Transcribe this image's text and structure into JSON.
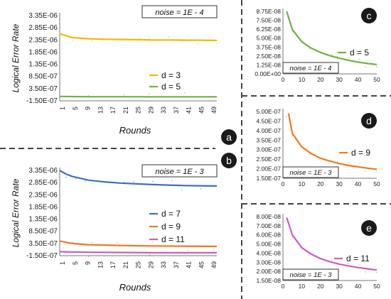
{
  "labels": {
    "a": "a",
    "b": "b",
    "c": "c",
    "d": "d",
    "e": "e"
  },
  "colors": {
    "d3": "#f5b800",
    "d5": "#6db33f",
    "d7": "#3f6fbf",
    "d9": "#f07a1e",
    "d11": "#c85fc0",
    "divider": "#444444",
    "badge_bg": "#1a1a1a",
    "badge_text": "#ffffff"
  },
  "chart_data": [
    {
      "id": "a",
      "type": "line",
      "ylabel": "Logical Error Rate",
      "xlabel": "Rounds",
      "noise_label": "noise = 1E - 4",
      "yticks": [
        "3.35E-06",
        "2.85E-06",
        "2.35E-06",
        "1.85E-06",
        "1.35E-06",
        "8.50E-07",
        "3.50E-07",
        "-1.50E-07"
      ],
      "ylim": [
        -1.5e-07,
        3.35e-06
      ],
      "xticks": [
        "1",
        "5",
        "9",
        "13",
        "17",
        "21",
        "25",
        "29",
        "33",
        "37",
        "41",
        "45",
        "49"
      ],
      "xlim": [
        1,
        50
      ],
      "legend_location": "right",
      "series": [
        {
          "name": "d = 3",
          "color_key": "d3",
          "x": [
            1,
            5,
            10,
            15,
            20,
            25,
            30,
            35,
            40,
            45,
            50
          ],
          "values": [
            2.6e-06,
            2.45e-06,
            2.4e-06,
            2.38e-06,
            2.37e-06,
            2.36e-06,
            2.35e-06,
            2.35e-06,
            2.34e-06,
            2.34e-06,
            2.33e-06
          ]
        },
        {
          "name": "d = 5",
          "color_key": "d5",
          "x": [
            1,
            10,
            20,
            30,
            40,
            50
          ],
          "values": [
            3e-08,
            2e-08,
            2e-08,
            1.5e-08,
            1.5e-08,
            1.5e-08
          ]
        }
      ]
    },
    {
      "id": "b",
      "type": "line",
      "ylabel": "Logical Error Rate",
      "xlabel": "Rounds",
      "noise_label": "noise = 1E - 3",
      "yticks": [
        "3.35E-06",
        "2.85E-06",
        "2.35E-06",
        "1.85E-06",
        "1.35E-06",
        "8.50E-07",
        "3.50E-07",
        "-1.50E-07"
      ],
      "ylim": [
        -1.5e-07,
        3.35e-06
      ],
      "xticks": [
        "1",
        "5",
        "9",
        "13",
        "17",
        "21",
        "25",
        "29",
        "33",
        "37",
        "41",
        "45",
        "49"
      ],
      "xlim": [
        1,
        50
      ],
      "legend_location": "right",
      "series": [
        {
          "name": "d = 7",
          "color_key": "d7",
          "x": [
            1,
            3,
            5,
            10,
            15,
            20,
            25,
            30,
            35,
            40,
            45,
            50
          ],
          "values": [
            3.35e-06,
            3.2e-06,
            3.1e-06,
            2.95e-06,
            2.88e-06,
            2.83e-06,
            2.8e-06,
            2.77e-06,
            2.75e-06,
            2.73e-06,
            2.72e-06,
            2.71e-06
          ]
        },
        {
          "name": "d = 9",
          "color_key": "d9",
          "x": [
            1,
            5,
            10,
            20,
            30,
            40,
            50
          ],
          "values": [
            4.5e-07,
            3.5e-07,
            3e-07,
            2.7e-07,
            2.5e-07,
            2.4e-07,
            2.3e-07
          ]
        },
        {
          "name": "d = 11",
          "color_key": "d11",
          "x": [
            1,
            10,
            20,
            30,
            40,
            50
          ],
          "values": [
            1e-08,
            -1e-08,
            -2e-08,
            -3e-08,
            -3e-08,
            -3e-08
          ]
        }
      ]
    },
    {
      "id": "c",
      "type": "line",
      "noise_label": "noise = 1E - 4",
      "yticks": [
        "8.75E-08",
        "7.50E-08",
        "6.25E-08",
        "5.00E-08",
        "3.75E-08",
        "2.50E-08",
        "1.25E-08",
        "0.00E+00"
      ],
      "ylim": [
        0,
        8.75e-08
      ],
      "xticks": [
        "0",
        "10",
        "20",
        "30",
        "40",
        "50"
      ],
      "xlim": [
        0,
        50
      ],
      "legend_location": "right",
      "series": [
        {
          "name": "d = 5",
          "color_key": "d5",
          "x": [
            2,
            5,
            10,
            15,
            20,
            25,
            30,
            35,
            40,
            45,
            50
          ],
          "values": [
            8.75e-08,
            6.2e-08,
            4.5e-08,
            3.6e-08,
            3e-08,
            2.55e-08,
            2.2e-08,
            1.9e-08,
            1.65e-08,
            1.45e-08,
            1.3e-08
          ]
        }
      ]
    },
    {
      "id": "d",
      "type": "line",
      "noise_label": "noise = 1E - 3",
      "yticks": [
        "5.00E-07",
        "4.50E-07",
        "4.00E-07",
        "3.50E-07",
        "3.00E-07",
        "2.50E-07",
        "2.00E-07",
        "1.50E-07"
      ],
      "ylim": [
        1.5e-07,
        5e-07
      ],
      "xticks": [
        "0",
        "10",
        "20",
        "30",
        "40",
        "50"
      ],
      "xlim": [
        0,
        50
      ],
      "legend_location": "right",
      "series": [
        {
          "name": "d = 9",
          "color_key": "d9",
          "x": [
            3,
            5,
            10,
            15,
            20,
            25,
            30,
            35,
            40,
            45,
            50
          ],
          "values": [
            4.9e-07,
            3.85e-07,
            3.15e-07,
            2.8e-07,
            2.55e-07,
            2.4e-07,
            2.27e-07,
            2.17e-07,
            2.1e-07,
            2.03e-07,
            1.97e-07
          ]
        }
      ]
    },
    {
      "id": "e",
      "type": "line",
      "noise_label": "noise = 1E - 3",
      "yticks": [
        "8.00E-08",
        "7.00E-08",
        "6.00E-08",
        "5.00E-08",
        "4.00E-08",
        "3.00E-08",
        "2.00E-08",
        "1.50E-08"
      ],
      "ylim": [
        1e-08,
        8e-08
      ],
      "xticks": [
        "0",
        "10",
        "20",
        "30",
        "40",
        "50"
      ],
      "xlim": [
        0,
        50
      ],
      "legend_location": "right",
      "series": [
        {
          "name": "d = 11",
          "color_key": "d11",
          "x": [
            2,
            5,
            10,
            15,
            20,
            25,
            30,
            35,
            40,
            45,
            50
          ],
          "values": [
            7.9e-08,
            6e-08,
            4.6e-08,
            3.9e-08,
            3.4e-08,
            3.05e-08,
            2.8e-08,
            2.6e-08,
            2.42e-08,
            2.28e-08,
            2.15e-08
          ]
        }
      ]
    }
  ]
}
